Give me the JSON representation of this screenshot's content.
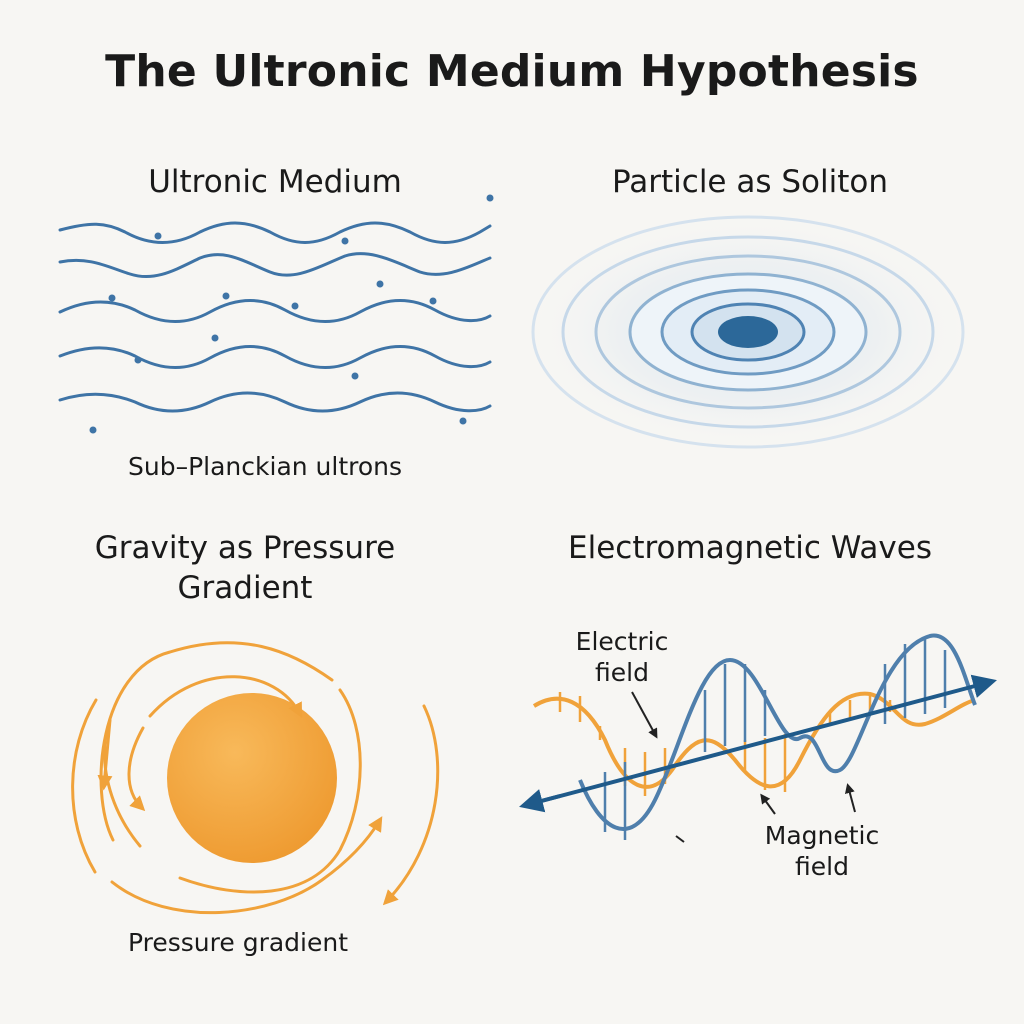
{
  "title": "The Ultronic Medium Hypothesis",
  "panels": {
    "medium": {
      "title": "Ultronic Medium",
      "caption": "Sub–Planckian ultrons"
    },
    "soliton": {
      "title": "Particle as Soliton"
    },
    "gravity": {
      "title_line1": "Gravity as Pressure",
      "title_line2": "Gradient",
      "caption": "Pressure gradient"
    },
    "em": {
      "title": "Electromagnetic Waves",
      "electric_line1": "Electric",
      "electric_line2": "field",
      "magnetic_line1": "Magnetic",
      "magnetic_line2": "field"
    }
  },
  "colors": {
    "background": "#f7f6f3",
    "wave_blue": "#3f74a6",
    "orange": "#f0a23a",
    "dark_blue": "#1f5a8a"
  }
}
